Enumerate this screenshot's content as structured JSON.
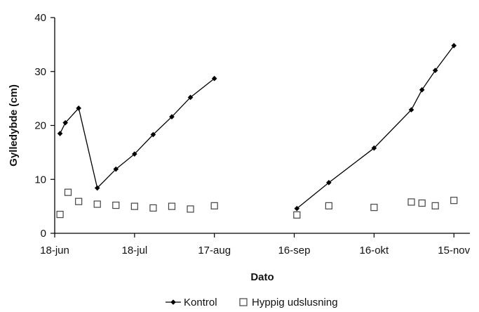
{
  "chart_data": {
    "type": "scatter",
    "title": "",
    "xlabel": "Dato",
    "ylabel": "Gylledybde (cm)",
    "ylim": [
      0,
      40
    ],
    "xlim": [
      "2005-06-18",
      "2005-11-21"
    ],
    "yticks": [
      0,
      10,
      20,
      30,
      40
    ],
    "xticks": [
      {
        "date": "2005-06-18",
        "label": "18-jun"
      },
      {
        "date": "2005-07-18",
        "label": "18-jul"
      },
      {
        "date": "2005-08-17",
        "label": "17-aug"
      },
      {
        "date": "2005-09-16",
        "label": "16-sep"
      },
      {
        "date": "2005-10-16",
        "label": "16-okt"
      },
      {
        "date": "2005-11-15",
        "label": "15-nov"
      }
    ],
    "grid": false,
    "legend": "bottom",
    "series": [
      {
        "name": "Kontrol",
        "marker": "diamond",
        "line": true,
        "color": "#000000",
        "segments": [
          [
            {
              "x": "2005-06-20",
              "y": 18.5
            },
            {
              "x": "2005-06-22",
              "y": 20.5
            },
            {
              "x": "2005-06-27",
              "y": 23.2
            },
            {
              "x": "2005-07-04",
              "y": 8.4
            },
            {
              "x": "2005-07-11",
              "y": 11.9
            },
            {
              "x": "2005-07-18",
              "y": 14.7
            },
            {
              "x": "2005-07-25",
              "y": 18.3
            },
            {
              "x": "2005-08-01",
              "y": 21.6
            },
            {
              "x": "2005-08-08",
              "y": 25.2
            },
            {
              "x": "2005-08-17",
              "y": 28.7
            }
          ],
          [
            {
              "x": "2005-09-17",
              "y": 4.6
            },
            {
              "x": "2005-09-29",
              "y": 9.4
            },
            {
              "x": "2005-10-16",
              "y": 15.8
            },
            {
              "x": "2005-10-30",
              "y": 22.9
            },
            {
              "x": "2005-11-03",
              "y": 26.6
            },
            {
              "x": "2005-11-08",
              "y": 30.2
            },
            {
              "x": "2005-11-15",
              "y": 34.8
            }
          ]
        ]
      },
      {
        "name": "Hyppig udslusning",
        "marker": "square-open",
        "line": false,
        "color": "#444444",
        "points": [
          {
            "x": "2005-06-20",
            "y": 3.5
          },
          {
            "x": "2005-06-23",
            "y": 7.6
          },
          {
            "x": "2005-06-27",
            "y": 5.9
          },
          {
            "x": "2005-07-04",
            "y": 5.4
          },
          {
            "x": "2005-07-11",
            "y": 5.2
          },
          {
            "x": "2005-07-18",
            "y": 5.0
          },
          {
            "x": "2005-07-25",
            "y": 4.7
          },
          {
            "x": "2005-08-01",
            "y": 5.0
          },
          {
            "x": "2005-08-08",
            "y": 4.5
          },
          {
            "x": "2005-08-17",
            "y": 5.1
          },
          {
            "x": "2005-09-17",
            "y": 3.4
          },
          {
            "x": "2005-09-29",
            "y": 5.1
          },
          {
            "x": "2005-10-16",
            "y": 4.8
          },
          {
            "x": "2005-10-30",
            "y": 5.8
          },
          {
            "x": "2005-11-03",
            "y": 5.6
          },
          {
            "x": "2005-11-08",
            "y": 5.1
          },
          {
            "x": "2005-11-15",
            "y": 6.1
          }
        ]
      }
    ]
  }
}
